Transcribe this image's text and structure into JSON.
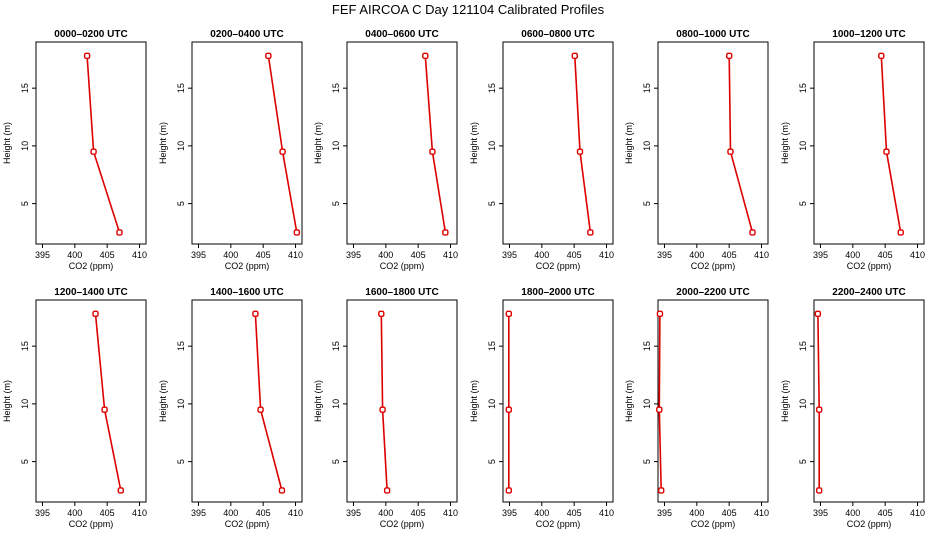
{
  "figure": {
    "title": "FEF AIRCOA C  Day 121104  Calibrated Profiles",
    "series_color": "#dd0000"
  },
  "chart_data": [
    {
      "type": "line",
      "title": "0000–0200 UTC",
      "xlabel": "CO2 (ppm)",
      "ylabel": "Height (m)",
      "xlim": [
        394,
        411
      ],
      "ylim": [
        1.5,
        19
      ],
      "xticks": [
        395,
        400,
        405,
        410
      ],
      "yticks": [
        5,
        10,
        15
      ],
      "x": [
        401.9,
        402.9,
        406.9
      ],
      "y": [
        17.8,
        9.5,
        2.5
      ]
    },
    {
      "type": "line",
      "title": "0200–0400 UTC",
      "xlabel": "CO2 (ppm)",
      "ylabel": "Height (m)",
      "xlim": [
        394,
        411
      ],
      "ylim": [
        1.5,
        19
      ],
      "xticks": [
        395,
        400,
        405,
        410
      ],
      "yticks": [
        5,
        10,
        15
      ],
      "x": [
        405.8,
        408.0,
        410.2
      ],
      "y": [
        17.8,
        9.5,
        2.5
      ]
    },
    {
      "type": "line",
      "title": "0400–0600 UTC",
      "xlabel": "CO2 (ppm)",
      "ylabel": "Height (m)",
      "xlim": [
        394,
        411
      ],
      "ylim": [
        1.5,
        19
      ],
      "xticks": [
        395,
        400,
        405,
        410
      ],
      "yticks": [
        5,
        10,
        15
      ],
      "x": [
        406.1,
        407.2,
        409.2
      ],
      "y": [
        17.8,
        9.5,
        2.5
      ]
    },
    {
      "type": "line",
      "title": "0600–0800 UTC",
      "xlabel": "CO2 (ppm)",
      "ylabel": "Height (m)",
      "xlim": [
        394,
        411
      ],
      "ylim": [
        1.5,
        19
      ],
      "xticks": [
        395,
        400,
        405,
        410
      ],
      "yticks": [
        5,
        10,
        15
      ],
      "x": [
        405.1,
        405.9,
        407.5
      ],
      "y": [
        17.8,
        9.5,
        2.5
      ]
    },
    {
      "type": "line",
      "title": "0800–1000 UTC",
      "xlabel": "CO2 (ppm)",
      "ylabel": "Height (m)",
      "xlim": [
        394,
        411
      ],
      "ylim": [
        1.5,
        19
      ],
      "xticks": [
        395,
        400,
        405,
        410
      ],
      "yticks": [
        5,
        10,
        15
      ],
      "x": [
        405.0,
        405.2,
        408.6
      ],
      "y": [
        17.8,
        9.5,
        2.5
      ]
    },
    {
      "type": "line",
      "title": "1000–1200 UTC",
      "xlabel": "CO2 (ppm)",
      "ylabel": "Height (m)",
      "xlim": [
        394,
        411
      ],
      "ylim": [
        1.5,
        19
      ],
      "xticks": [
        395,
        400,
        405,
        410
      ],
      "yticks": [
        5,
        10,
        15
      ],
      "x": [
        404.4,
        405.2,
        407.4
      ],
      "y": [
        17.8,
        9.5,
        2.5
      ]
    },
    {
      "type": "line",
      "title": "1200–1400 UTC",
      "xlabel": "CO2 (ppm)",
      "ylabel": "Height (m)",
      "xlim": [
        394,
        411
      ],
      "ylim": [
        1.5,
        19
      ],
      "xticks": [
        395,
        400,
        405,
        410
      ],
      "yticks": [
        5,
        10,
        15
      ],
      "x": [
        403.2,
        404.6,
        407.1
      ],
      "y": [
        17.8,
        9.5,
        2.5
      ]
    },
    {
      "type": "line",
      "title": "1400–1600 UTC",
      "xlabel": "CO2 (ppm)",
      "ylabel": "Height (m)",
      "xlim": [
        394,
        411
      ],
      "ylim": [
        1.5,
        19
      ],
      "xticks": [
        395,
        400,
        405,
        410
      ],
      "yticks": [
        5,
        10,
        15
      ],
      "x": [
        403.8,
        404.6,
        407.9
      ],
      "y": [
        17.8,
        9.5,
        2.5
      ]
    },
    {
      "type": "line",
      "title": "1600–1800 UTC",
      "xlabel": "CO2 (ppm)",
      "ylabel": "Height (m)",
      "xlim": [
        394,
        411
      ],
      "ylim": [
        1.5,
        19
      ],
      "xticks": [
        395,
        400,
        405,
        410
      ],
      "yticks": [
        5,
        10,
        15
      ],
      "x": [
        399.3,
        399.5,
        400.2
      ],
      "y": [
        17.8,
        9.5,
        2.5
      ]
    },
    {
      "type": "line",
      "title": "1800–2000 UTC",
      "xlabel": "CO2 (ppm)",
      "ylabel": "Height (m)",
      "xlim": [
        394,
        411
      ],
      "ylim": [
        1.5,
        19
      ],
      "xticks": [
        395,
        400,
        405,
        410
      ],
      "yticks": [
        5,
        10,
        15
      ],
      "x": [
        394.9,
        394.9,
        394.9
      ],
      "y": [
        17.8,
        9.5,
        2.5
      ]
    },
    {
      "type": "line",
      "title": "2000–2200 UTC",
      "xlabel": "CO2 (ppm)",
      "ylabel": "Height (m)",
      "xlim": [
        394,
        411
      ],
      "ylim": [
        1.5,
        19
      ],
      "xticks": [
        395,
        400,
        405,
        410
      ],
      "yticks": [
        5,
        10,
        15
      ],
      "x": [
        394.3,
        394.2,
        394.5
      ],
      "y": [
        17.8,
        9.5,
        2.5
      ]
    },
    {
      "type": "line",
      "title": "2200–2400 UTC",
      "xlabel": "CO2 (ppm)",
      "ylabel": "Height (m)",
      "xlim": [
        394,
        411
      ],
      "ylim": [
        1.5,
        19
      ],
      "xticks": [
        395,
        400,
        405,
        410
      ],
      "yticks": [
        5,
        10,
        15
      ],
      "x": [
        394.6,
        394.8,
        394.8
      ],
      "y": [
        17.8,
        9.5,
        2.5
      ]
    }
  ]
}
